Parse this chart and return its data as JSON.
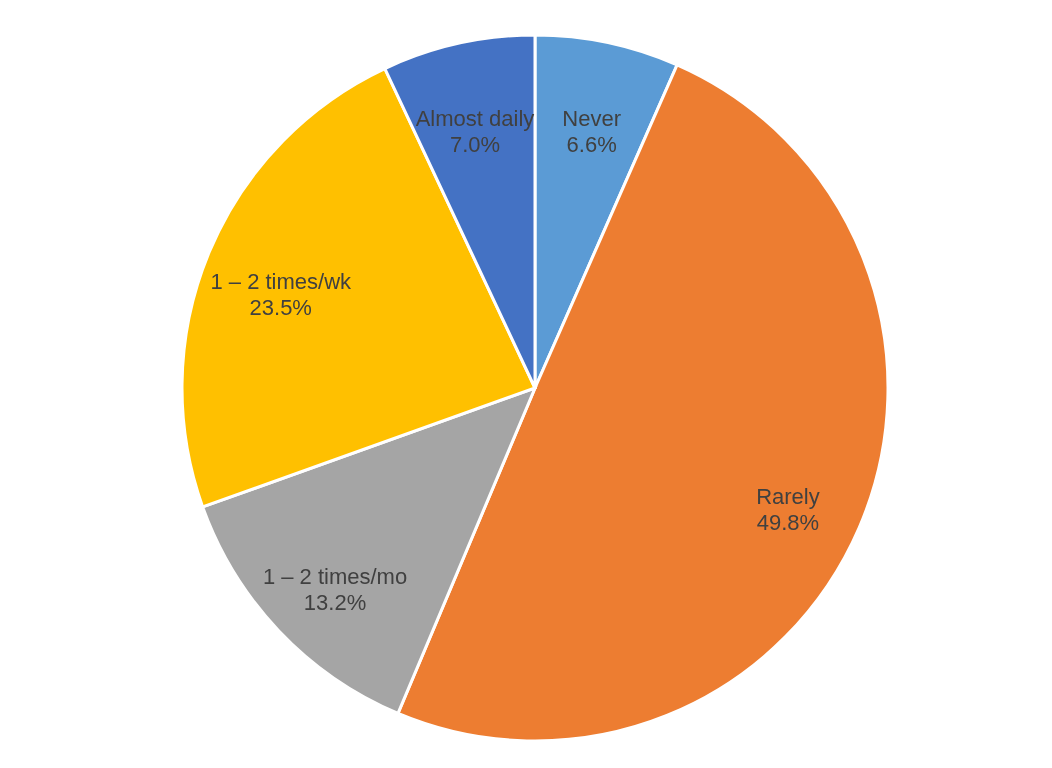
{
  "chart_data": {
    "type": "pie",
    "categories": [
      "Never",
      "Rarely",
      "1 – 2 times/mo",
      "1 – 2 times/wk",
      "Almost daily"
    ],
    "values": [
      6.6,
      49.8,
      13.2,
      23.5,
      7.0
    ],
    "value_labels": [
      "6.6%",
      "49.8%",
      "13.2%",
      "23.5%",
      "7.0%"
    ],
    "colors": [
      "#5b9bd5",
      "#ed7d31",
      "#a5a5a5",
      "#ffc000",
      "#4472c4"
    ]
  }
}
